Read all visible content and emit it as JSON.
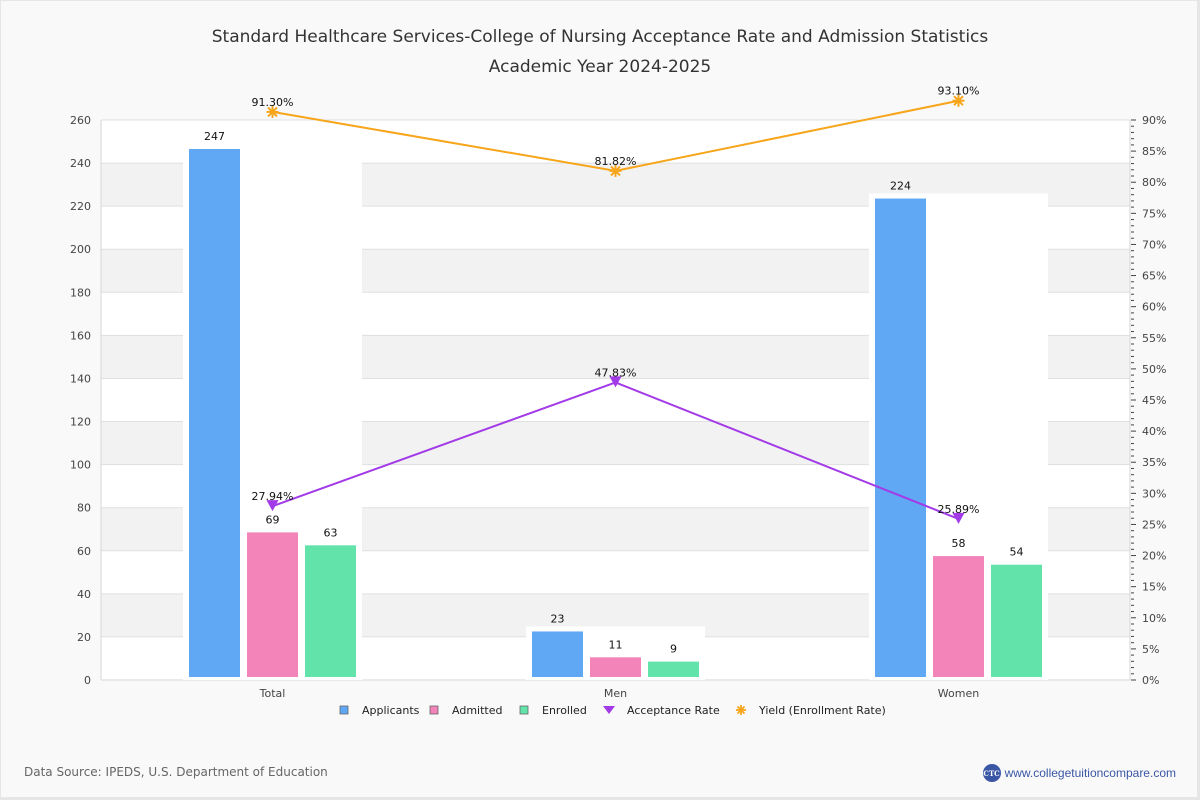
{
  "colors": {
    "applicants": "#60a8f4",
    "admitted": "#f284ba",
    "enrolled": "#62e3aa",
    "acceptance": "#a23ae8",
    "yield": "#f7a51a"
  },
  "footer": {
    "source": "Data Source: IPEDS, U.S. Department of Education",
    "brand": "www.collegetuitioncompare.com",
    "logo_text": "CTC"
  },
  "chart_data": {
    "type": "bar",
    "title": "Standard Healthcare Services-College of Nursing Acceptance Rate and Admission Statistics",
    "subtitle": "Academic Year 2024-2025",
    "categories": [
      "Total",
      "Men",
      "Women"
    ],
    "series": [
      {
        "name": "Applicants",
        "type": "bar",
        "axis": "left",
        "values": [
          247,
          23,
          224
        ]
      },
      {
        "name": "Admitted",
        "type": "bar",
        "axis": "left",
        "values": [
          69,
          11,
          58
        ]
      },
      {
        "name": "Enrolled",
        "type": "bar",
        "axis": "left",
        "values": [
          63,
          9,
          54
        ]
      },
      {
        "name": "Acceptance Rate",
        "type": "line",
        "axis": "right",
        "marker": "triangle-down",
        "values": [
          27.94,
          47.83,
          25.89
        ],
        "labels": [
          "27.94%",
          "47.83%",
          "25.89%"
        ]
      },
      {
        "name": "Yield (Enrollment Rate)",
        "type": "line",
        "axis": "right",
        "marker": "asterisk",
        "values": [
          91.3,
          81.82,
          93.1
        ],
        "labels": [
          "91.30%",
          "81.82%",
          "93.10%"
        ]
      }
    ],
    "left_axis": {
      "ylim": [
        0,
        260
      ],
      "ticks": [
        "0",
        "20",
        "40",
        "60",
        "80",
        "100",
        "120",
        "140",
        "160",
        "180",
        "200",
        "220",
        "240",
        "260"
      ]
    },
    "right_axis": {
      "ylim": [
        0,
        90
      ],
      "ticks": [
        "0%",
        "5%",
        "10%",
        "15%",
        "20%",
        "25%",
        "30%",
        "35%",
        "40%",
        "45%",
        "50%",
        "55%",
        "60%",
        "65%",
        "70%",
        "75%",
        "80%",
        "85%",
        "90%"
      ]
    },
    "xlabel": "",
    "ylabel": "",
    "grid": true,
    "legend_position": "bottom",
    "legend": [
      "Applicants",
      "Admitted",
      "Enrolled",
      "Acceptance Rate",
      "Yield (Enrollment Rate)"
    ]
  }
}
